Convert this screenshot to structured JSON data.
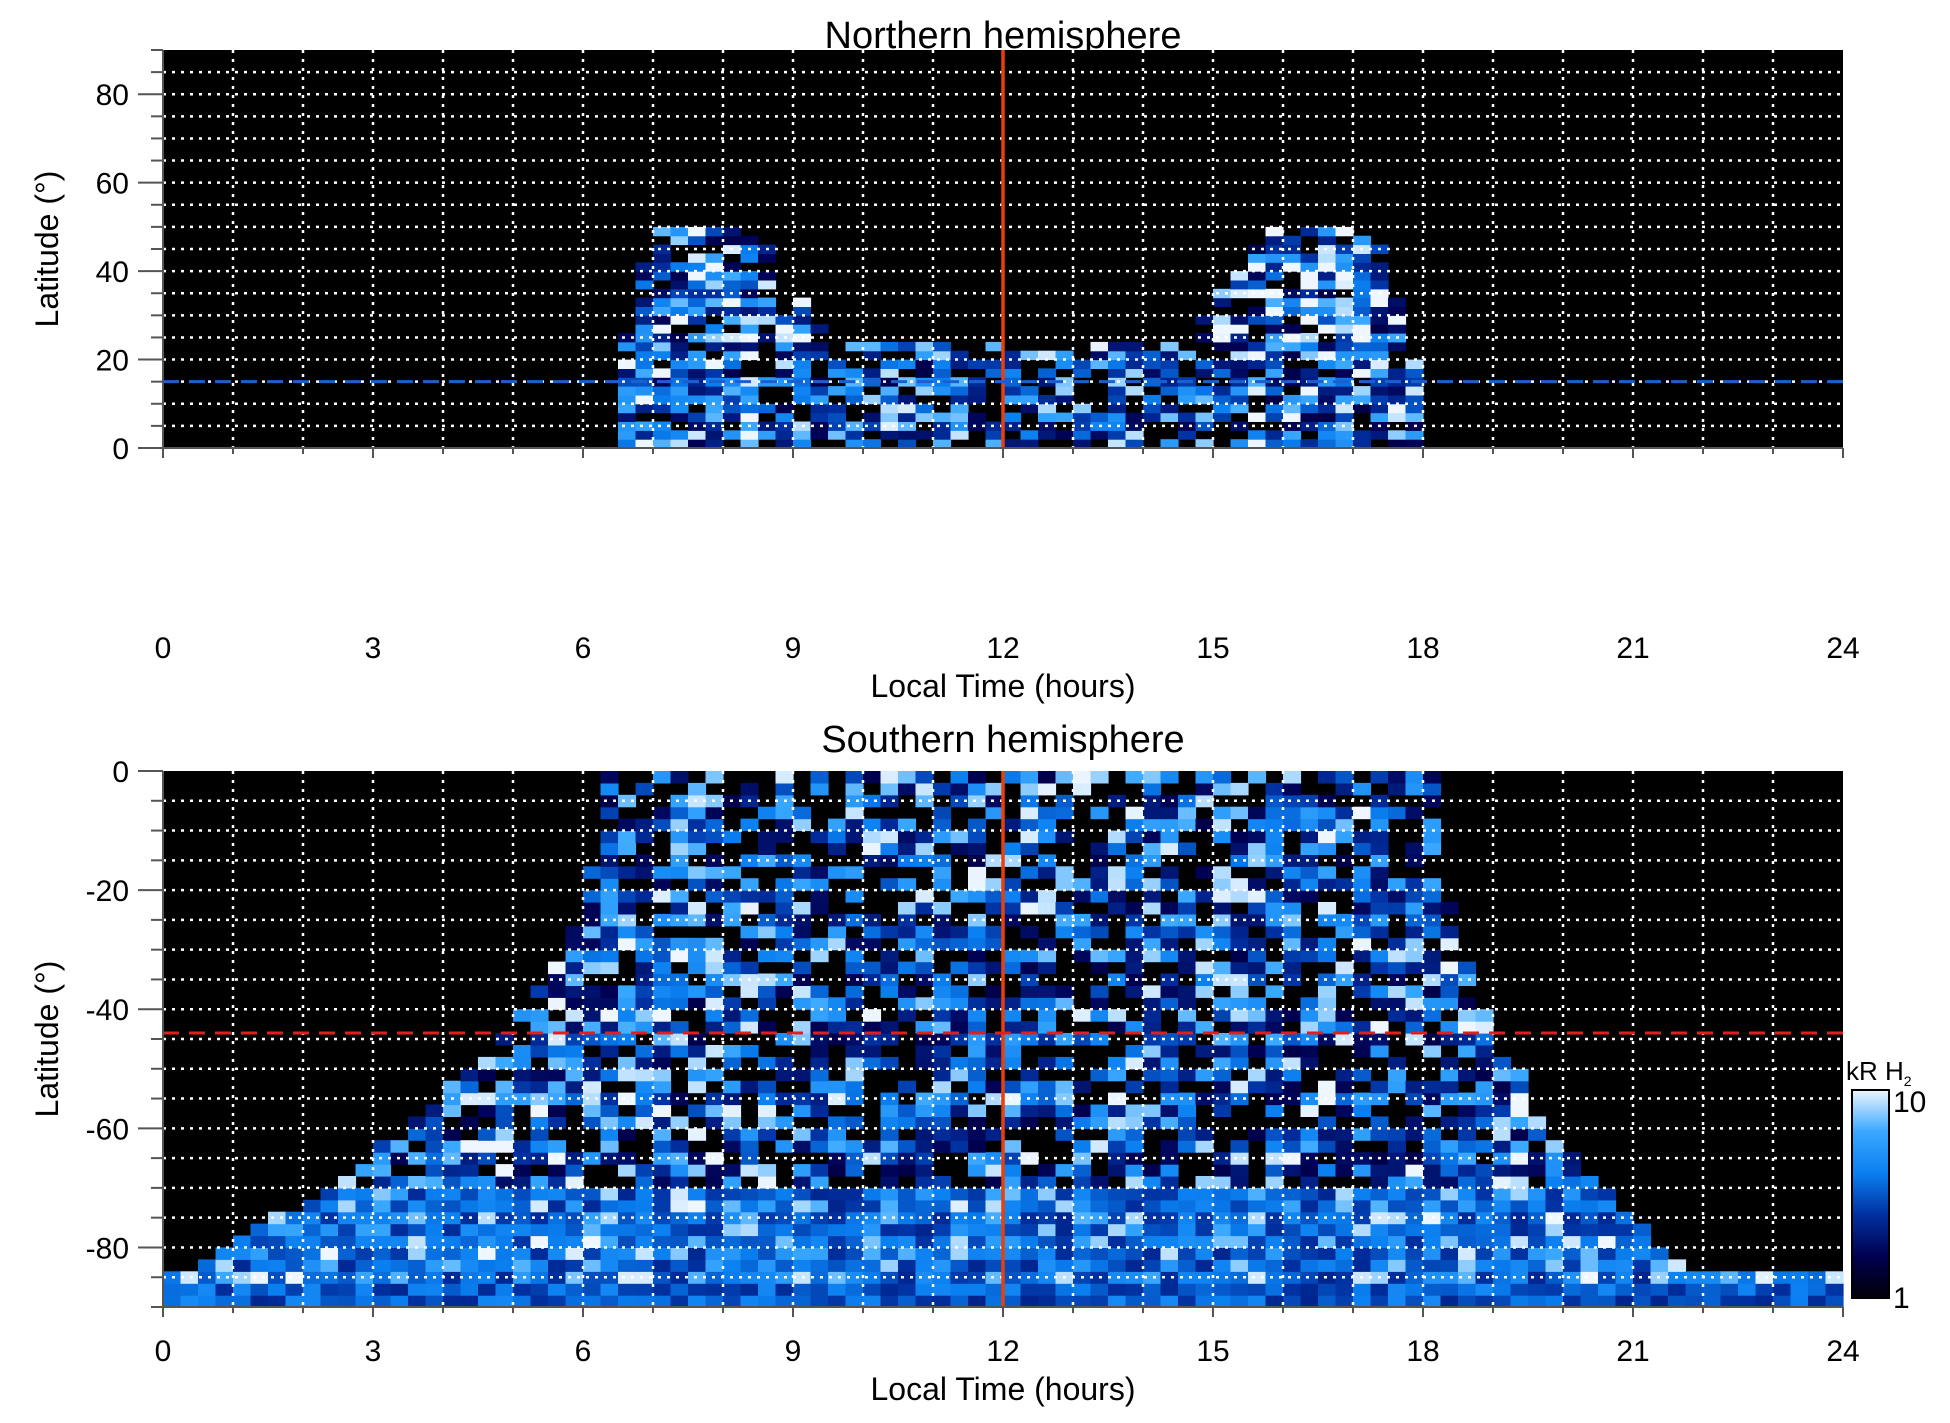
{
  "chart_data": [
    {
      "type": "heatmap",
      "title": "Northern hemisphere",
      "xlabel": "Local Time (hours)",
      "ylabel": "Latitude (°)",
      "xlim": [
        0,
        24
      ],
      "ylim": [
        0,
        90
      ],
      "xticks": [
        "0",
        "3",
        "6",
        "9",
        "12",
        "15",
        "18",
        "21",
        "24"
      ],
      "yticks": [
        "0",
        "20",
        "40",
        "60",
        "80"
      ],
      "ytick_values": [
        0,
        20,
        40,
        60,
        80
      ],
      "grid": true,
      "reference_lines": [
        {
          "orientation": "vertical",
          "value": 12,
          "style": "solid",
          "color": "#e8400c"
        },
        {
          "orientation": "horizontal",
          "value": 15,
          "style": "dashed",
          "color": "#1a5fd0"
        }
      ]
    },
    {
      "type": "heatmap",
      "title": "Southern hemisphere",
      "xlabel": "Local Time (hours)",
      "ylabel": "Latitude (°)",
      "xlim": [
        0,
        24
      ],
      "ylim": [
        -90,
        0
      ],
      "xticks": [
        "0",
        "3",
        "6",
        "9",
        "12",
        "15",
        "18",
        "21",
        "24"
      ],
      "yticks": [
        "0",
        "-20",
        "-40",
        "-60",
        "-80"
      ],
      "ytick_values": [
        0,
        -20,
        -40,
        -60,
        -80
      ],
      "grid": true,
      "reference_lines": [
        {
          "orientation": "vertical",
          "value": 12,
          "style": "solid",
          "color": "#e8400c"
        },
        {
          "orientation": "horizontal",
          "value": -44,
          "style": "dashed",
          "color": "#e02020"
        }
      ]
    }
  ],
  "colorbar": {
    "label": "kR H",
    "label_subscript": "2",
    "scale": "log",
    "min": 1,
    "max": 10,
    "min_label": "1",
    "max_label": "10",
    "colors": [
      "#000008",
      "#000050",
      "#0030a0",
      "#0a7ff0",
      "#3aa8ff",
      "#eef6ff"
    ]
  }
}
